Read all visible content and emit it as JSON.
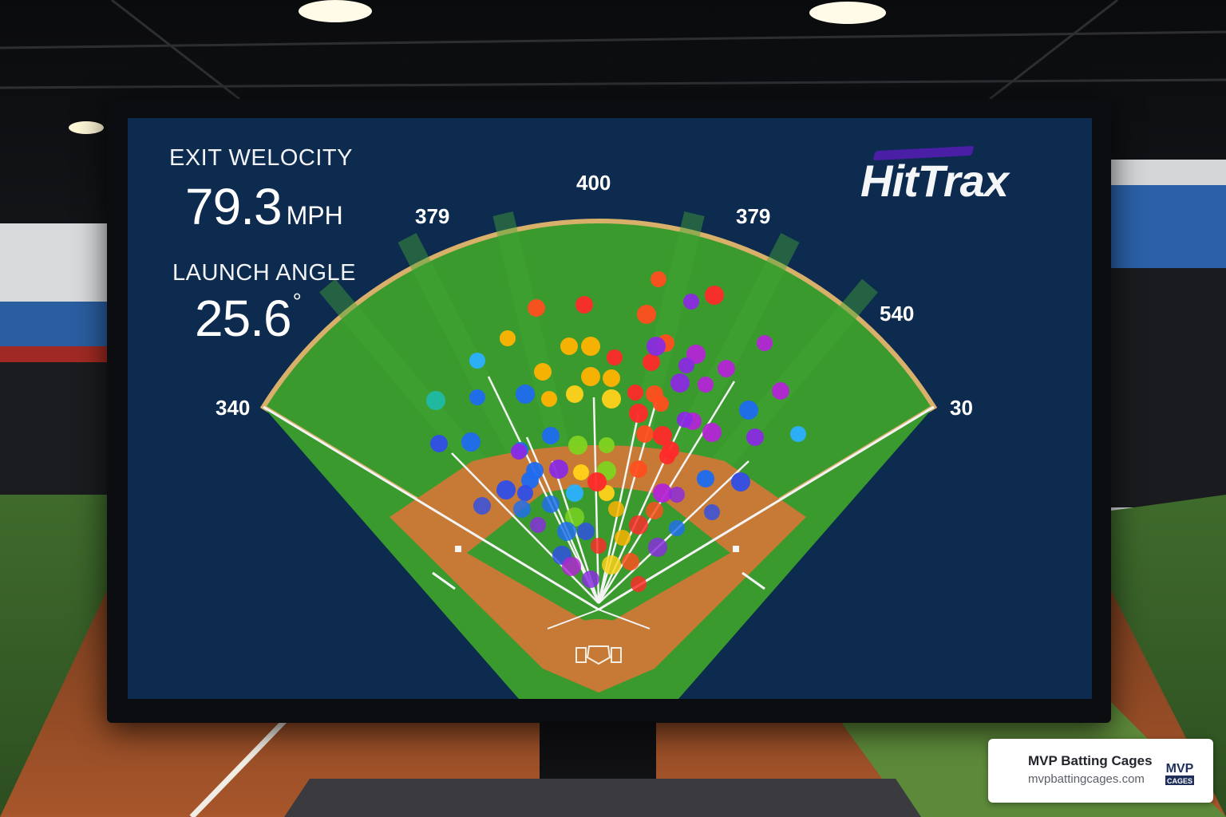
{
  "exit_velocity": {
    "label": "EXIT WELOCITY",
    "value": "79.3",
    "unit": "MPH"
  },
  "launch_angle": {
    "label": "LAUNCH ANGLE",
    "value": "25.6",
    "unit": "°"
  },
  "brand": "HitTrax",
  "distances": {
    "center": "400",
    "left_center": "379",
    "right_center": "379",
    "right_upper": "540",
    "left_line": "340",
    "right_line": "30"
  },
  "watermark": {
    "title": "MVP Batting Cages",
    "url": "mvpbattingcages.com",
    "logo_top": "MVP",
    "logo_bottom": "CAGES"
  },
  "colors": {
    "screen": "#0d2a4f",
    "grass": "#3a9a2e",
    "dirt": "#c77a35",
    "warning_track": "#d8b06a",
    "hit_palette": [
      "#ff4e1f",
      "#ff2a2a",
      "#ffb300",
      "#ffd21a",
      "#7ed321",
      "#2bb0ff",
      "#1e6cf0",
      "#2f4ee8",
      "#8a2be2",
      "#b325d6",
      "#20b9a6"
    ]
  }
}
